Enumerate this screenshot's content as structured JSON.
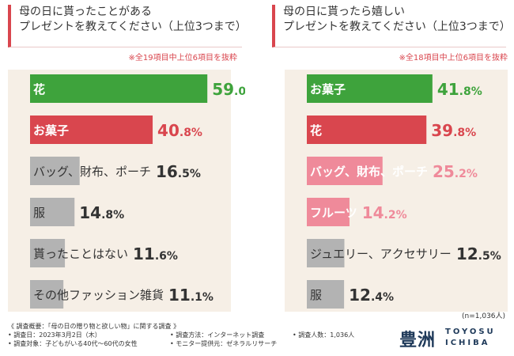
{
  "colors": {
    "green": "#3ea33c",
    "red": "#d9464e",
    "pink": "#ef8a9a",
    "gray": "#b3b3b3",
    "label_dark": "#333333",
    "bg": "#f6efe6",
    "accent": "#d9464e"
  },
  "left": {
    "title_line1": "母の日に貰ったことがある",
    "title_line2": "プレゼントを教えてください（上位3つまで）",
    "note": "※全19項目中上位6項目を抜粋"
  },
  "right": {
    "title_line1": "母の日に貰ったら嬉しい",
    "title_line2": "プレゼントを教えてください（上位3つまで）",
    "note": "※全18項目中上位6項目を抜粋"
  },
  "chart_data": [
    {
      "type": "bar",
      "orientation": "horizontal",
      "title": "母の日に貰ったことがあるプレゼントを教えてください（上位3つまで）",
      "unit": "%",
      "xlim": [
        0,
        100
      ],
      "categories": [
        "花",
        "お菓子",
        "バッグ、財布、ポーチ",
        "服",
        "貰ったことはない",
        "その他ファッション雑貨"
      ],
      "values": [
        59.0,
        40.8,
        16.5,
        14.8,
        11.6,
        11.1
      ],
      "colors": [
        "#3ea33c",
        "#d9464e",
        "#b3b3b3",
        "#b3b3b3",
        "#b3b3b3",
        "#b3b3b3"
      ],
      "value_colors": [
        "#3ea33c",
        "#d9464e",
        "#333333",
        "#333333",
        "#333333",
        "#333333"
      ],
      "label_on_bar": [
        true,
        true,
        false,
        false,
        false,
        false
      ]
    },
    {
      "type": "bar",
      "orientation": "horizontal",
      "title": "母の日に貰ったら嬉しいプレゼントを教えてください（上位3つまで）",
      "unit": "%",
      "xlim": [
        0,
        100
      ],
      "categories": [
        "お菓子",
        "花",
        "バッグ、財布、ポーチ",
        "フルーツ",
        "ジュエリー、アクセサリー",
        "服"
      ],
      "values": [
        41.8,
        39.8,
        25.2,
        14.2,
        12.5,
        12.4
      ],
      "colors": [
        "#3ea33c",
        "#d9464e",
        "#ef8a9a",
        "#ef8a9a",
        "#b3b3b3",
        "#b3b3b3"
      ],
      "value_colors": [
        "#3ea33c",
        "#d9464e",
        "#ef8a9a",
        "#ef8a9a",
        "#333333",
        "#333333"
      ],
      "label_on_bar": [
        true,
        true,
        true,
        true,
        false,
        false
      ]
    }
  ],
  "n_size": "(n=1,036人)",
  "footer": {
    "summary": "《 調査概要：「母の日の贈り物と欲しい物」に関する調査 》",
    "date": "• 調査日：2023年3月2日（木）",
    "target": "• 調査対象：子どもがいる40代〜60代の女性",
    "method": "• 調査方法：インターネット調査",
    "provider": "• モニター提供元：ゼネラルリサーチ",
    "count": "• 調査人数：1,036人"
  },
  "logo": {
    "kanji": "豊洲",
    "line1": "TOYOSU",
    "line2": "ICHIBA"
  }
}
